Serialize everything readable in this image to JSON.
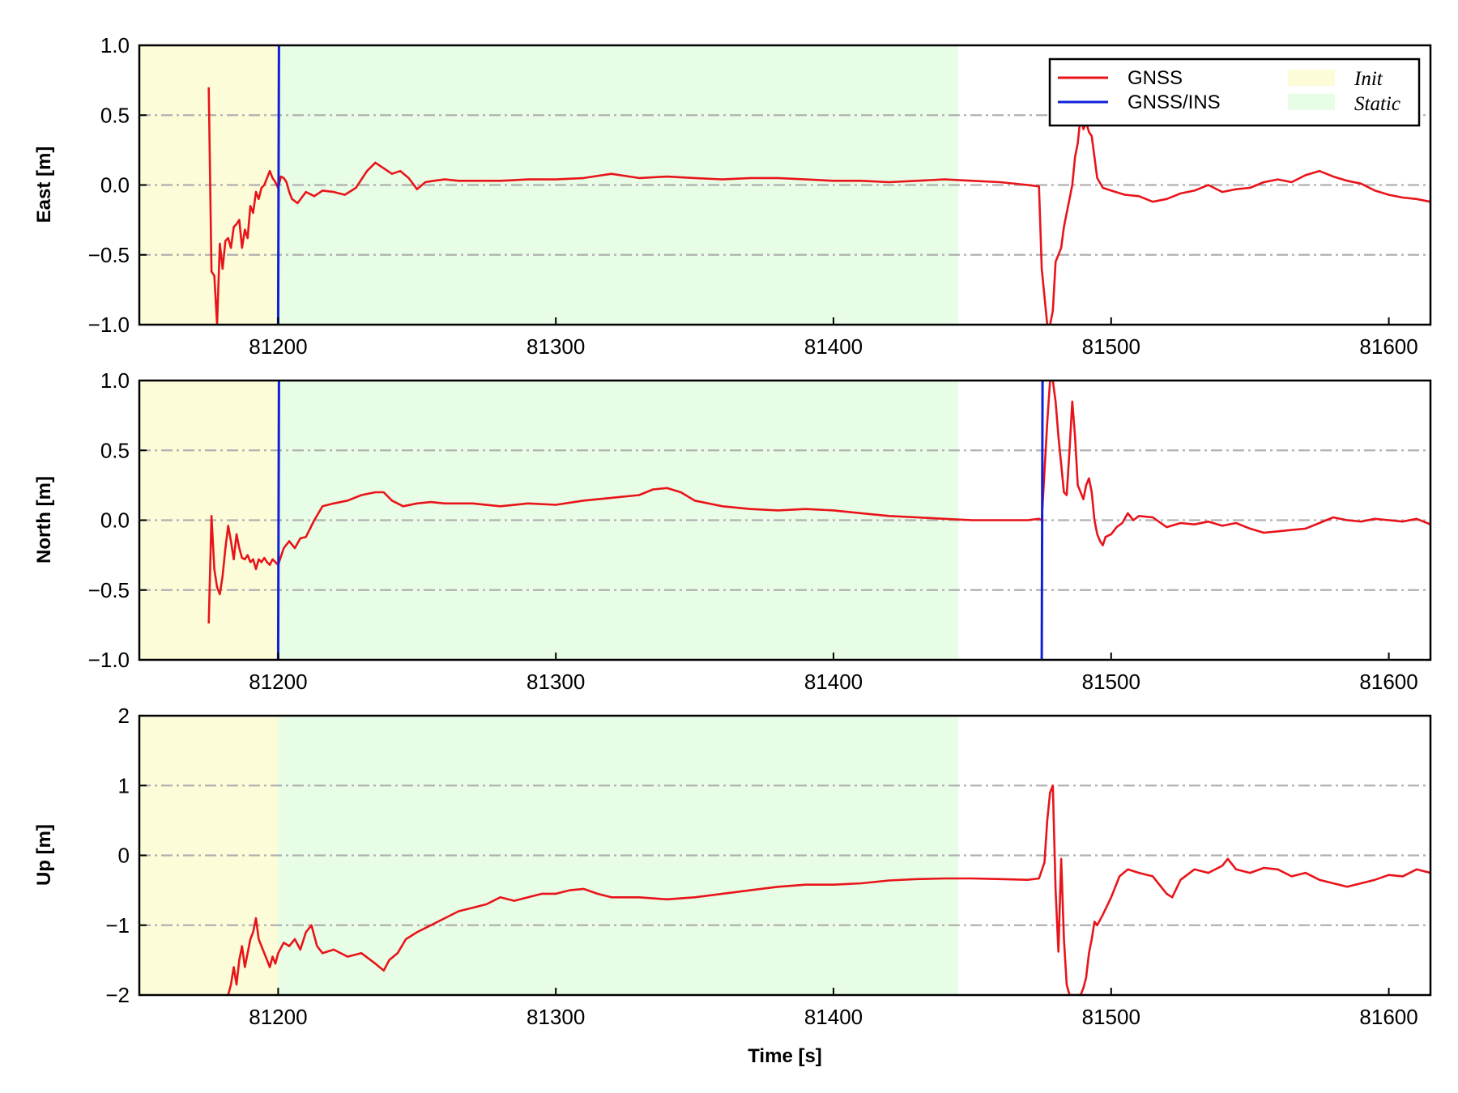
{
  "chart_data": {
    "type": "line",
    "xlabel": "Time [s]",
    "xlim": [
      81150,
      81615
    ],
    "xticks": [
      81200,
      81300,
      81400,
      81500,
      81600
    ],
    "xtick_labels": [
      "81200",
      "81300",
      "81400",
      "81500",
      "81600"
    ],
    "grid": "horizontal dash-dot at y ticks",
    "legend": {
      "placement": "top-right of first panel",
      "entries": [
        {
          "label": "GNSS",
          "kind": "line",
          "color": "#e8141a"
        },
        {
          "label": "GNSS/INS",
          "kind": "line",
          "color": "#1020d8"
        },
        {
          "label": "Init",
          "kind": "region",
          "color": "#fcfcd9"
        },
        {
          "label": "Static",
          "kind": "region",
          "color": "#e8fde5"
        }
      ]
    },
    "regions": [
      {
        "name": "Init",
        "x": [
          81150,
          81200
        ],
        "color": "#fcfcd9"
      },
      {
        "name": "Static",
        "x": [
          81200,
          81445
        ],
        "color": "#e8fde5"
      }
    ],
    "panels": [
      {
        "ylabel": "East [m]",
        "ylim": [
          -1.0,
          1.0
        ],
        "yticks": [
          -1.0,
          -0.5,
          0.0,
          0.5,
          1.0
        ],
        "ytick_labels": [
          "−1.0",
          "−0.5",
          "0.0",
          "0.5",
          "1.0"
        ],
        "series": [
          {
            "name": "GNSS",
            "color": "#e8141a",
            "x": [
              81175,
              81176,
              81177,
              81178,
              81179,
              81180,
              81181,
              81182,
              81183,
              81184,
              81185,
              81186,
              81187,
              81188,
              81189,
              81190,
              81191,
              81192,
              81193,
              81194,
              81195,
              81196,
              81197,
              81198,
              81199,
              81200,
              81201,
              81202,
              81203,
              81204,
              81205,
              81207,
              81210,
              81213,
              81216,
              81220,
              81224,
              81228,
              81232,
              81235,
              81238,
              81241,
              81244,
              81247,
              81250,
              81253,
              81256,
              81260,
              81265,
              81270,
              81280,
              81290,
              81300,
              81310,
              81320,
              81330,
              81340,
              81350,
              81360,
              81370,
              81380,
              81390,
              81400,
              81410,
              81420,
              81430,
              81440,
              81450,
              81460,
              81470,
              81474,
              81475,
              81476,
              81477,
              81478,
              81479,
              81480,
              81481,
              81482,
              81483,
              81484,
              81485,
              81486,
              81487,
              81488,
              81489,
              81490,
              81491,
              81492,
              81493,
              81494,
              81495,
              81497,
              81500,
              81505,
              81510,
              81515,
              81520,
              81525,
              81530,
              81535,
              81540,
              81545,
              81550,
              81555,
              81560,
              81565,
              81570,
              81575,
              81580,
              81585,
              81590,
              81595,
              81600,
              81605,
              81610,
              81615
            ],
            "y": [
              0.7,
              -0.62,
              -0.65,
              -1.0,
              -0.42,
              -0.6,
              -0.4,
              -0.38,
              -0.45,
              -0.3,
              -0.28,
              -0.25,
              -0.45,
              -0.32,
              -0.38,
              -0.15,
              -0.2,
              -0.05,
              -0.1,
              -0.02,
              0.0,
              0.05,
              0.1,
              0.05,
              0.02,
              -0.02,
              0.06,
              0.05,
              0.02,
              -0.05,
              -0.1,
              -0.13,
              -0.05,
              -0.08,
              -0.04,
              -0.05,
              -0.07,
              -0.02,
              0.1,
              0.16,
              0.12,
              0.08,
              0.1,
              0.05,
              -0.03,
              0.02,
              0.03,
              0.04,
              0.03,
              0.03,
              0.03,
              0.04,
              0.04,
              0.05,
              0.08,
              0.05,
              0.06,
              0.05,
              0.04,
              0.05,
              0.05,
              0.04,
              0.03,
              0.03,
              0.02,
              0.03,
              0.04,
              0.03,
              0.02,
              0.0,
              -0.01,
              -0.6,
              -0.8,
              -1.0,
              -1.0,
              -0.9,
              -0.55,
              -0.5,
              -0.45,
              -0.3,
              -0.2,
              -0.1,
              0.0,
              0.2,
              0.3,
              0.5,
              0.4,
              0.45,
              0.38,
              0.35,
              0.2,
              0.05,
              -0.02,
              -0.04,
              -0.07,
              -0.08,
              -0.12,
              -0.1,
              -0.06,
              -0.04,
              0.0,
              -0.05,
              -0.03,
              -0.02,
              0.02,
              0.04,
              0.02,
              0.07,
              0.1,
              0.06,
              0.03,
              0.01,
              -0.04,
              -0.07,
              -0.09,
              -0.1,
              -0.12
            ]
          },
          {
            "name": "GNSS/INS",
            "color": "#1020d8",
            "x": [
              81200,
              81200.3
            ],
            "y": [
              -1.0,
              1.0
            ]
          }
        ]
      },
      {
        "ylabel": "North [m]",
        "ylim": [
          -1.0,
          1.0
        ],
        "yticks": [
          -1.0,
          -0.5,
          0.0,
          0.5,
          1.0
        ],
        "ytick_labels": [
          "−1.0",
          "−0.5",
          "0.0",
          "0.5",
          "1.0"
        ],
        "series": [
          {
            "name": "GNSS",
            "color": "#e8141a",
            "x": [
              81175,
              81176,
              81177,
              81178,
              81179,
              81180,
              81181,
              81182,
              81183,
              81184,
              81185,
              81186,
              81187,
              81188,
              81189,
              81190,
              81191,
              81192,
              81193,
              81194,
              81195,
              81196,
              81197,
              81198,
              81199,
              81200,
              81202,
              81204,
              81206,
              81208,
              81210,
              81213,
              81216,
              81220,
              81225,
              81230,
              81235,
              81238,
              81241,
              81245,
              81250,
              81255,
              81260,
              81270,
              81280,
              81290,
              81300,
              81310,
              81320,
              81330,
              81335,
              81340,
              81345,
              81350,
              81360,
              81370,
              81380,
              81390,
              81400,
              81410,
              81420,
              81430,
              81440,
              81450,
              81460,
              81470,
              81474,
              81475,
              81476,
              81477,
              81478,
              81479,
              81480,
              81481,
              81482,
              81483,
              81484,
              81485,
              81486,
              81487,
              81488,
              81489,
              81490,
              81491,
              81492,
              81493,
              81494,
              81495,
              81496,
              81497,
              81498,
              81500,
              81502,
              81504,
              81506,
              81508,
              81510,
              81515,
              81520,
              81525,
              81530,
              81535,
              81540,
              81545,
              81550,
              81555,
              81560,
              81565,
              81570,
              81575,
              81580,
              81585,
              81590,
              81595,
              81600,
              81605,
              81610,
              81615
            ],
            "y": [
              -0.74,
              0.03,
              -0.35,
              -0.48,
              -0.53,
              -0.4,
              -0.2,
              -0.04,
              -0.15,
              -0.28,
              -0.1,
              -0.2,
              -0.27,
              -0.28,
              -0.25,
              -0.3,
              -0.28,
              -0.35,
              -0.28,
              -0.3,
              -0.27,
              -0.3,
              -0.32,
              -0.28,
              -0.3,
              -0.32,
              -0.2,
              -0.15,
              -0.2,
              -0.13,
              -0.12,
              0.0,
              0.1,
              0.12,
              0.14,
              0.18,
              0.2,
              0.2,
              0.14,
              0.1,
              0.12,
              0.13,
              0.12,
              0.12,
              0.1,
              0.12,
              0.11,
              0.14,
              0.16,
              0.18,
              0.22,
              0.23,
              0.2,
              0.14,
              0.1,
              0.08,
              0.07,
              0.08,
              0.07,
              0.05,
              0.03,
              0.02,
              0.01,
              0.0,
              0.0,
              0.0,
              0.01,
              0.0,
              0.35,
              0.7,
              1.0,
              1.0,
              0.85,
              0.6,
              0.4,
              0.2,
              0.18,
              0.5,
              0.85,
              0.6,
              0.25,
              0.2,
              0.15,
              0.25,
              0.3,
              0.2,
              0.0,
              -0.1,
              -0.15,
              -0.18,
              -0.12,
              -0.1,
              -0.05,
              -0.02,
              0.05,
              0.0,
              0.03,
              0.02,
              -0.05,
              -0.02,
              -0.03,
              -0.01,
              -0.04,
              -0.02,
              -0.06,
              -0.09,
              -0.08,
              -0.07,
              -0.06,
              -0.02,
              0.02,
              0.0,
              -0.01,
              0.01,
              0.0,
              -0.01,
              0.01,
              -0.03
            ]
          },
          {
            "name": "GNSS/INS",
            "color": "#1020d8",
            "x": [
              81200,
              81200.3,
              81475,
              81475.3
            ],
            "y": [
              -1.0,
              1.0,
              -1.0,
              1.0
            ]
          }
        ]
      },
      {
        "ylabel": "Up [m]",
        "ylim": [
          -2,
          2
        ],
        "yticks": [
          -2,
          -1,
          0,
          1,
          2
        ],
        "ytick_labels": [
          "−2",
          "−1",
          "0",
          "1",
          "2"
        ],
        "series": [
          {
            "name": "GNSS",
            "color": "#e8141a",
            "x": [
              81182,
              81183,
              81184,
              81185,
              81186,
              81187,
              81188,
              81189,
              81190,
              81191,
              81192,
              81193,
              81194,
              81195,
              81196,
              81197,
              81198,
              81199,
              81200,
              81202,
              81204,
              81206,
              81208,
              81210,
              81212,
              81214,
              81216,
              81220,
              81225,
              81230,
              81235,
              81238,
              81240,
              81243,
              81246,
              81250,
              81255,
              81260,
              81265,
              81270,
              81275,
              81280,
              81285,
              81290,
              81295,
              81300,
              81305,
              81310,
              81315,
              81320,
              81325,
              81330,
              81340,
              81350,
              81360,
              81370,
              81380,
              81390,
              81400,
              81410,
              81420,
              81430,
              81440,
              81450,
              81460,
              81470,
              81474,
              81476,
              81477,
              81478,
              81479,
              81480,
              81481,
              81482,
              81483,
              81484,
              81485,
              81486,
              81487,
              81488,
              81489,
              81490,
              81491,
              81492,
              81493,
              81494,
              81495,
              81497,
              81500,
              81503,
              81506,
              81510,
              81515,
              81520,
              81522,
              81525,
              81530,
              81535,
              81540,
              81542,
              81545,
              81550,
              81555,
              81560,
              81565,
              81570,
              81575,
              81580,
              81585,
              81590,
              81595,
              81600,
              81605,
              81610,
              81615
            ],
            "y": [
              -2.0,
              -1.85,
              -1.6,
              -1.85,
              -1.5,
              -1.3,
              -1.6,
              -1.4,
              -1.2,
              -1.1,
              -0.9,
              -1.2,
              -1.3,
              -1.4,
              -1.5,
              -1.6,
              -1.45,
              -1.55,
              -1.4,
              -1.25,
              -1.3,
              -1.2,
              -1.35,
              -1.1,
              -1.0,
              -1.3,
              -1.4,
              -1.35,
              -1.45,
              -1.4,
              -1.55,
              -1.65,
              -1.5,
              -1.4,
              -1.2,
              -1.1,
              -1.0,
              -0.9,
              -0.8,
              -0.75,
              -0.7,
              -0.6,
              -0.65,
              -0.6,
              -0.55,
              -0.55,
              -0.5,
              -0.48,
              -0.55,
              -0.6,
              -0.6,
              -0.6,
              -0.63,
              -0.6,
              -0.55,
              -0.5,
              -0.45,
              -0.42,
              -0.42,
              -0.4,
              -0.36,
              -0.34,
              -0.33,
              -0.33,
              -0.34,
              -0.35,
              -0.33,
              -0.1,
              0.5,
              0.9,
              1.0,
              -0.5,
              -1.38,
              -0.05,
              -1.2,
              -1.85,
              -2.0,
              -2.0,
              -2.0,
              -2.0,
              -2.0,
              -1.9,
              -1.75,
              -1.4,
              -1.2,
              -0.95,
              -1.0,
              -0.85,
              -0.6,
              -0.3,
              -0.2,
              -0.25,
              -0.3,
              -0.55,
              -0.6,
              -0.35,
              -0.2,
              -0.25,
              -0.15,
              -0.05,
              -0.2,
              -0.25,
              -0.18,
              -0.2,
              -0.3,
              -0.25,
              -0.35,
              -0.4,
              -0.45,
              -0.4,
              -0.35,
              -0.28,
              -0.3,
              -0.2,
              -0.25
            ]
          }
        ]
      }
    ]
  }
}
